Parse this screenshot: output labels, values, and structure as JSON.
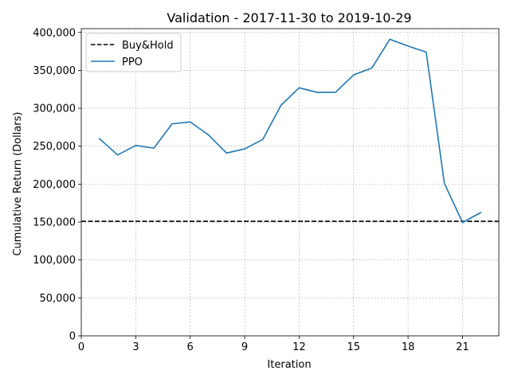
{
  "chart_data": {
    "type": "line",
    "title": "Validation - 2017-11-30 to 2019-10-29",
    "xlabel": "Iteration",
    "ylabel": "Cumulative Return (Dollars)",
    "xlim": [
      0,
      23
    ],
    "ylim": [
      0,
      405000
    ],
    "xticks": [
      0,
      3,
      6,
      9,
      12,
      15,
      18,
      21
    ],
    "yticks": [
      0,
      50000,
      100000,
      150000,
      200000,
      250000,
      300000,
      350000,
      400000
    ],
    "ytick_labels": [
      "0",
      "50,000",
      "100,000",
      "150,000",
      "200,000",
      "250,000",
      "300,000",
      "350,000",
      "400,000"
    ],
    "grid": true,
    "legend_position": "top-left",
    "series": [
      {
        "name": "Buy&Hold",
        "style": "dashed",
        "color": "#000000",
        "value": 151000
      },
      {
        "name": "PPO",
        "style": "solid",
        "color": "#1f77b4",
        "x": [
          1,
          2,
          3,
          4,
          5,
          6,
          7,
          8,
          9,
          10,
          11,
          12,
          13,
          14,
          15,
          16,
          17,
          18,
          19,
          20,
          21,
          22
        ],
        "y": [
          260000,
          238500,
          251000,
          247500,
          279500,
          282000,
          265000,
          241000,
          246500,
          259000,
          304000,
          327000,
          321000,
          321000,
          344000,
          353000,
          391000,
          382000,
          374000,
          201000,
          149500,
          162500
        ]
      }
    ]
  }
}
